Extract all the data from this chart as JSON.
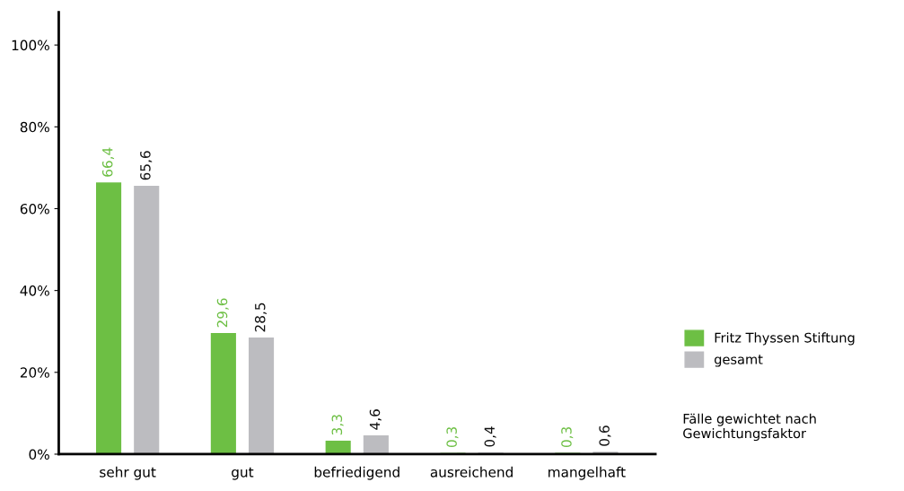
{
  "chart_data": {
    "type": "bar",
    "categories": [
      "sehr gut",
      "gut",
      "befriedigend",
      "ausreichend",
      "mangelhaft"
    ],
    "series": [
      {
        "name": "Fritz Thyssen Stiftung",
        "color": "#6dbf44",
        "values": [
          66.4,
          29.6,
          3.3,
          0.3,
          0.3
        ],
        "value_labels": [
          "66,4",
          "29,6",
          "3,3",
          "0,3",
          "0,3"
        ]
      },
      {
        "name": "gesamt",
        "color": "#bcbcc0",
        "values": [
          65.6,
          28.5,
          4.6,
          0.4,
          0.6
        ],
        "value_labels": [
          "65,6",
          "28,5",
          "4,6",
          "0,4",
          "0,6"
        ]
      }
    ],
    "ylim": [
      0,
      108
    ],
    "yticks": [
      {
        "value": 0,
        "label": "0%"
      },
      {
        "value": 20,
        "label": "20%"
      },
      {
        "value": 40,
        "label": "40%"
      },
      {
        "value": 60,
        "label": "60%"
      },
      {
        "value": 80,
        "label": "80%"
      },
      {
        "value": 100,
        "label": "100%"
      }
    ],
    "grid": false,
    "legend": "right",
    "annotations": [
      "Fälle gewichtet nach\nGewichtungsfaktor"
    ]
  }
}
